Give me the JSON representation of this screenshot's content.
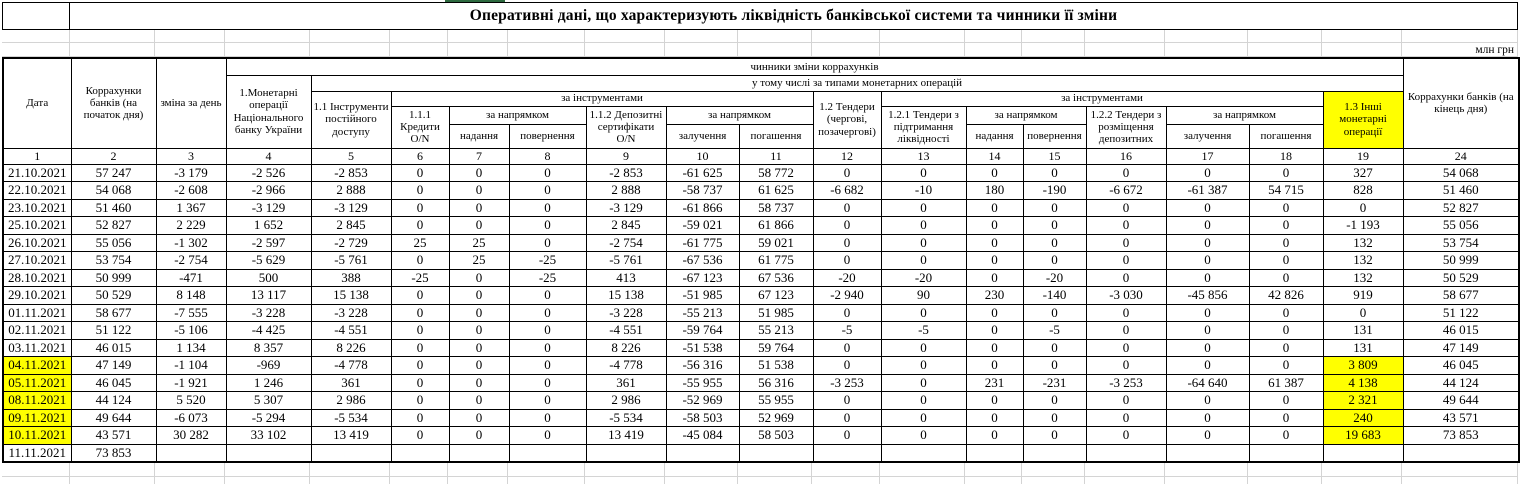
{
  "title": "Оперативні дані, що характеризують ліквідність банківської системи та чинники її зміни",
  "units_label": "млн грн",
  "header": {
    "date": "Дата",
    "corr_start": "Коррахунки банків (на початок дня)",
    "day_change": "зміна за день",
    "monetary_ops": "1.Монетарні операції Національного банку України",
    "factors": "чинники зміни коррахунків",
    "by_types": "у тому числі за типами монетарних операцій",
    "standing_facilities": "1.1 Інструменти постійного доступу",
    "by_instruments": "за інструментами",
    "credits_on": "1.1.1 Кредити O/N",
    "by_direction": "за напрямком",
    "grant": "надання",
    "return": "повернення",
    "deposit_certificates_on": "1.1.2 Депозитні сертифікати O/N",
    "attraction": "залучення",
    "repayment": "погашення",
    "tenders": "1.2 Тендери (чергові, позачергові)",
    "tenders_liquidity_support": "1.2.1 Тендери з підтримання ліквідності",
    "tenders_deposit_placement": "1.2.2 Тендери з розміщення депозитних",
    "other_monetary_ops": "1.3 Інші монетарні операції",
    "corr_end": "Коррахунки банків (на кінець дня)"
  },
  "column_numbers": [
    "1",
    "2",
    "3",
    "4",
    "5",
    "6",
    "7",
    "8",
    "9",
    "10",
    "11",
    "12",
    "13",
    "14",
    "15",
    "16",
    "17",
    "18",
    "19",
    "24"
  ],
  "rows": [
    {
      "date": "21.10.2021",
      "hl": false,
      "values": [
        "57 247",
        "-3 179",
        "-2 526",
        "-2 853",
        "0",
        "0",
        "0",
        "-2 853",
        "-61 625",
        "58 772",
        "0",
        "0",
        "0",
        "0",
        "0",
        "0",
        "0",
        "327",
        "54 068"
      ]
    },
    {
      "date": "22.10.2021",
      "hl": false,
      "values": [
        "54 068",
        "-2 608",
        "-2 966",
        "2 888",
        "0",
        "0",
        "0",
        "2 888",
        "-58 737",
        "61 625",
        "-6 682",
        "-10",
        "180",
        "-190",
        "-6 672",
        "-61 387",
        "54 715",
        "828",
        "51 460"
      ]
    },
    {
      "date": "23.10.2021",
      "hl": false,
      "values": [
        "51 460",
        "1 367",
        "-3 129",
        "-3 129",
        "0",
        "0",
        "0",
        "-3 129",
        "-61 866",
        "58 737",
        "0",
        "0",
        "0",
        "0",
        "0",
        "0",
        "0",
        "0",
        "52 827"
      ]
    },
    {
      "date": "25.10.2021",
      "hl": false,
      "values": [
        "52 827",
        "2 229",
        "1 652",
        "2 845",
        "0",
        "0",
        "0",
        "2 845",
        "-59 021",
        "61 866",
        "0",
        "0",
        "0",
        "0",
        "0",
        "0",
        "0",
        "-1 193",
        "55 056"
      ]
    },
    {
      "date": "26.10.2021",
      "hl": false,
      "values": [
        "55 056",
        "-1 302",
        "-2 597",
        "-2 729",
        "25",
        "25",
        "0",
        "-2 754",
        "-61 775",
        "59 021",
        "0",
        "0",
        "0",
        "0",
        "0",
        "0",
        "0",
        "132",
        "53 754"
      ]
    },
    {
      "date": "27.10.2021",
      "hl": false,
      "values": [
        "53 754",
        "-2 754",
        "-5 629",
        "-5 761",
        "0",
        "25",
        "-25",
        "-5 761",
        "-67 536",
        "61 775",
        "0",
        "0",
        "0",
        "0",
        "0",
        "0",
        "0",
        "132",
        "50 999"
      ]
    },
    {
      "date": "28.10.2021",
      "hl": false,
      "values": [
        "50 999",
        "-471",
        "500",
        "388",
        "-25",
        "0",
        "-25",
        "413",
        "-67 123",
        "67 536",
        "-20",
        "-20",
        "0",
        "-20",
        "0",
        "0",
        "0",
        "132",
        "50 529"
      ]
    },
    {
      "date": "29.10.2021",
      "hl": false,
      "values": [
        "50 529",
        "8 148",
        "13 117",
        "15 138",
        "0",
        "0",
        "0",
        "15 138",
        "-51 985",
        "67 123",
        "-2 940",
        "90",
        "230",
        "-140",
        "-3 030",
        "-45 856",
        "42 826",
        "919",
        "58 677"
      ]
    },
    {
      "date": "01.11.2021",
      "hl": false,
      "values": [
        "58 677",
        "-7 555",
        "-3 228",
        "-3 228",
        "0",
        "0",
        "0",
        "-3 228",
        "-55 213",
        "51 985",
        "0",
        "0",
        "0",
        "0",
        "0",
        "0",
        "0",
        "0",
        "51 122"
      ]
    },
    {
      "date": "02.11.2021",
      "hl": false,
      "values": [
        "51 122",
        "-5 106",
        "-4 425",
        "-4 551",
        "0",
        "0",
        "0",
        "-4 551",
        "-59 764",
        "55 213",
        "-5",
        "-5",
        "0",
        "-5",
        "0",
        "0",
        "0",
        "131",
        "46 015"
      ]
    },
    {
      "date": "03.11.2021",
      "hl": false,
      "values": [
        "46 015",
        "1 134",
        "8 357",
        "8 226",
        "0",
        "0",
        "0",
        "8 226",
        "-51 538",
        "59 764",
        "0",
        "0",
        "0",
        "0",
        "0",
        "0",
        "0",
        "131",
        "47 149"
      ]
    },
    {
      "date": "04.11.2021",
      "hl": true,
      "values": [
        "47 149",
        "-1 104",
        "-969",
        "-4 778",
        "0",
        "0",
        "0",
        "-4 778",
        "-56 316",
        "51 538",
        "0",
        "0",
        "0",
        "0",
        "0",
        "0",
        "0",
        "3 809",
        "46 045"
      ]
    },
    {
      "date": "05.11.2021",
      "hl": true,
      "values": [
        "46 045",
        "-1 921",
        "1 246",
        "361",
        "0",
        "0",
        "0",
        "361",
        "-55 955",
        "56 316",
        "-3 253",
        "0",
        "231",
        "-231",
        "-3 253",
        "-64 640",
        "61 387",
        "4 138",
        "44 124"
      ]
    },
    {
      "date": "08.11.2021",
      "hl": true,
      "values": [
        "44 124",
        "5 520",
        "5 307",
        "2 986",
        "0",
        "0",
        "0",
        "2 986",
        "-52 969",
        "55 955",
        "0",
        "0",
        "0",
        "0",
        "0",
        "0",
        "0",
        "2 321",
        "49 644"
      ]
    },
    {
      "date": "09.11.2021",
      "hl": true,
      "values": [
        "49 644",
        "-6 073",
        "-5 294",
        "-5 534",
        "0",
        "0",
        "0",
        "-5 534",
        "-58 503",
        "52 969",
        "0",
        "0",
        "0",
        "0",
        "0",
        "0",
        "0",
        "240",
        "43 571"
      ]
    },
    {
      "date": "10.11.2021",
      "hl": true,
      "values": [
        "43 571",
        "30 282",
        "33 102",
        "13 419",
        "0",
        "0",
        "0",
        "13 419",
        "-45 084",
        "58 503",
        "0",
        "0",
        "0",
        "0",
        "0",
        "0",
        "0",
        "19 683",
        "73 853"
      ]
    },
    {
      "date": "11.11.2021",
      "hl": false,
      "values": [
        "73 853",
        "",
        "",
        "",
        "",
        "",
        "",
        "",
        "",
        "",
        "",
        "",
        "",
        "",
        "",
        "",
        "",
        "",
        ""
      ]
    }
  ]
}
